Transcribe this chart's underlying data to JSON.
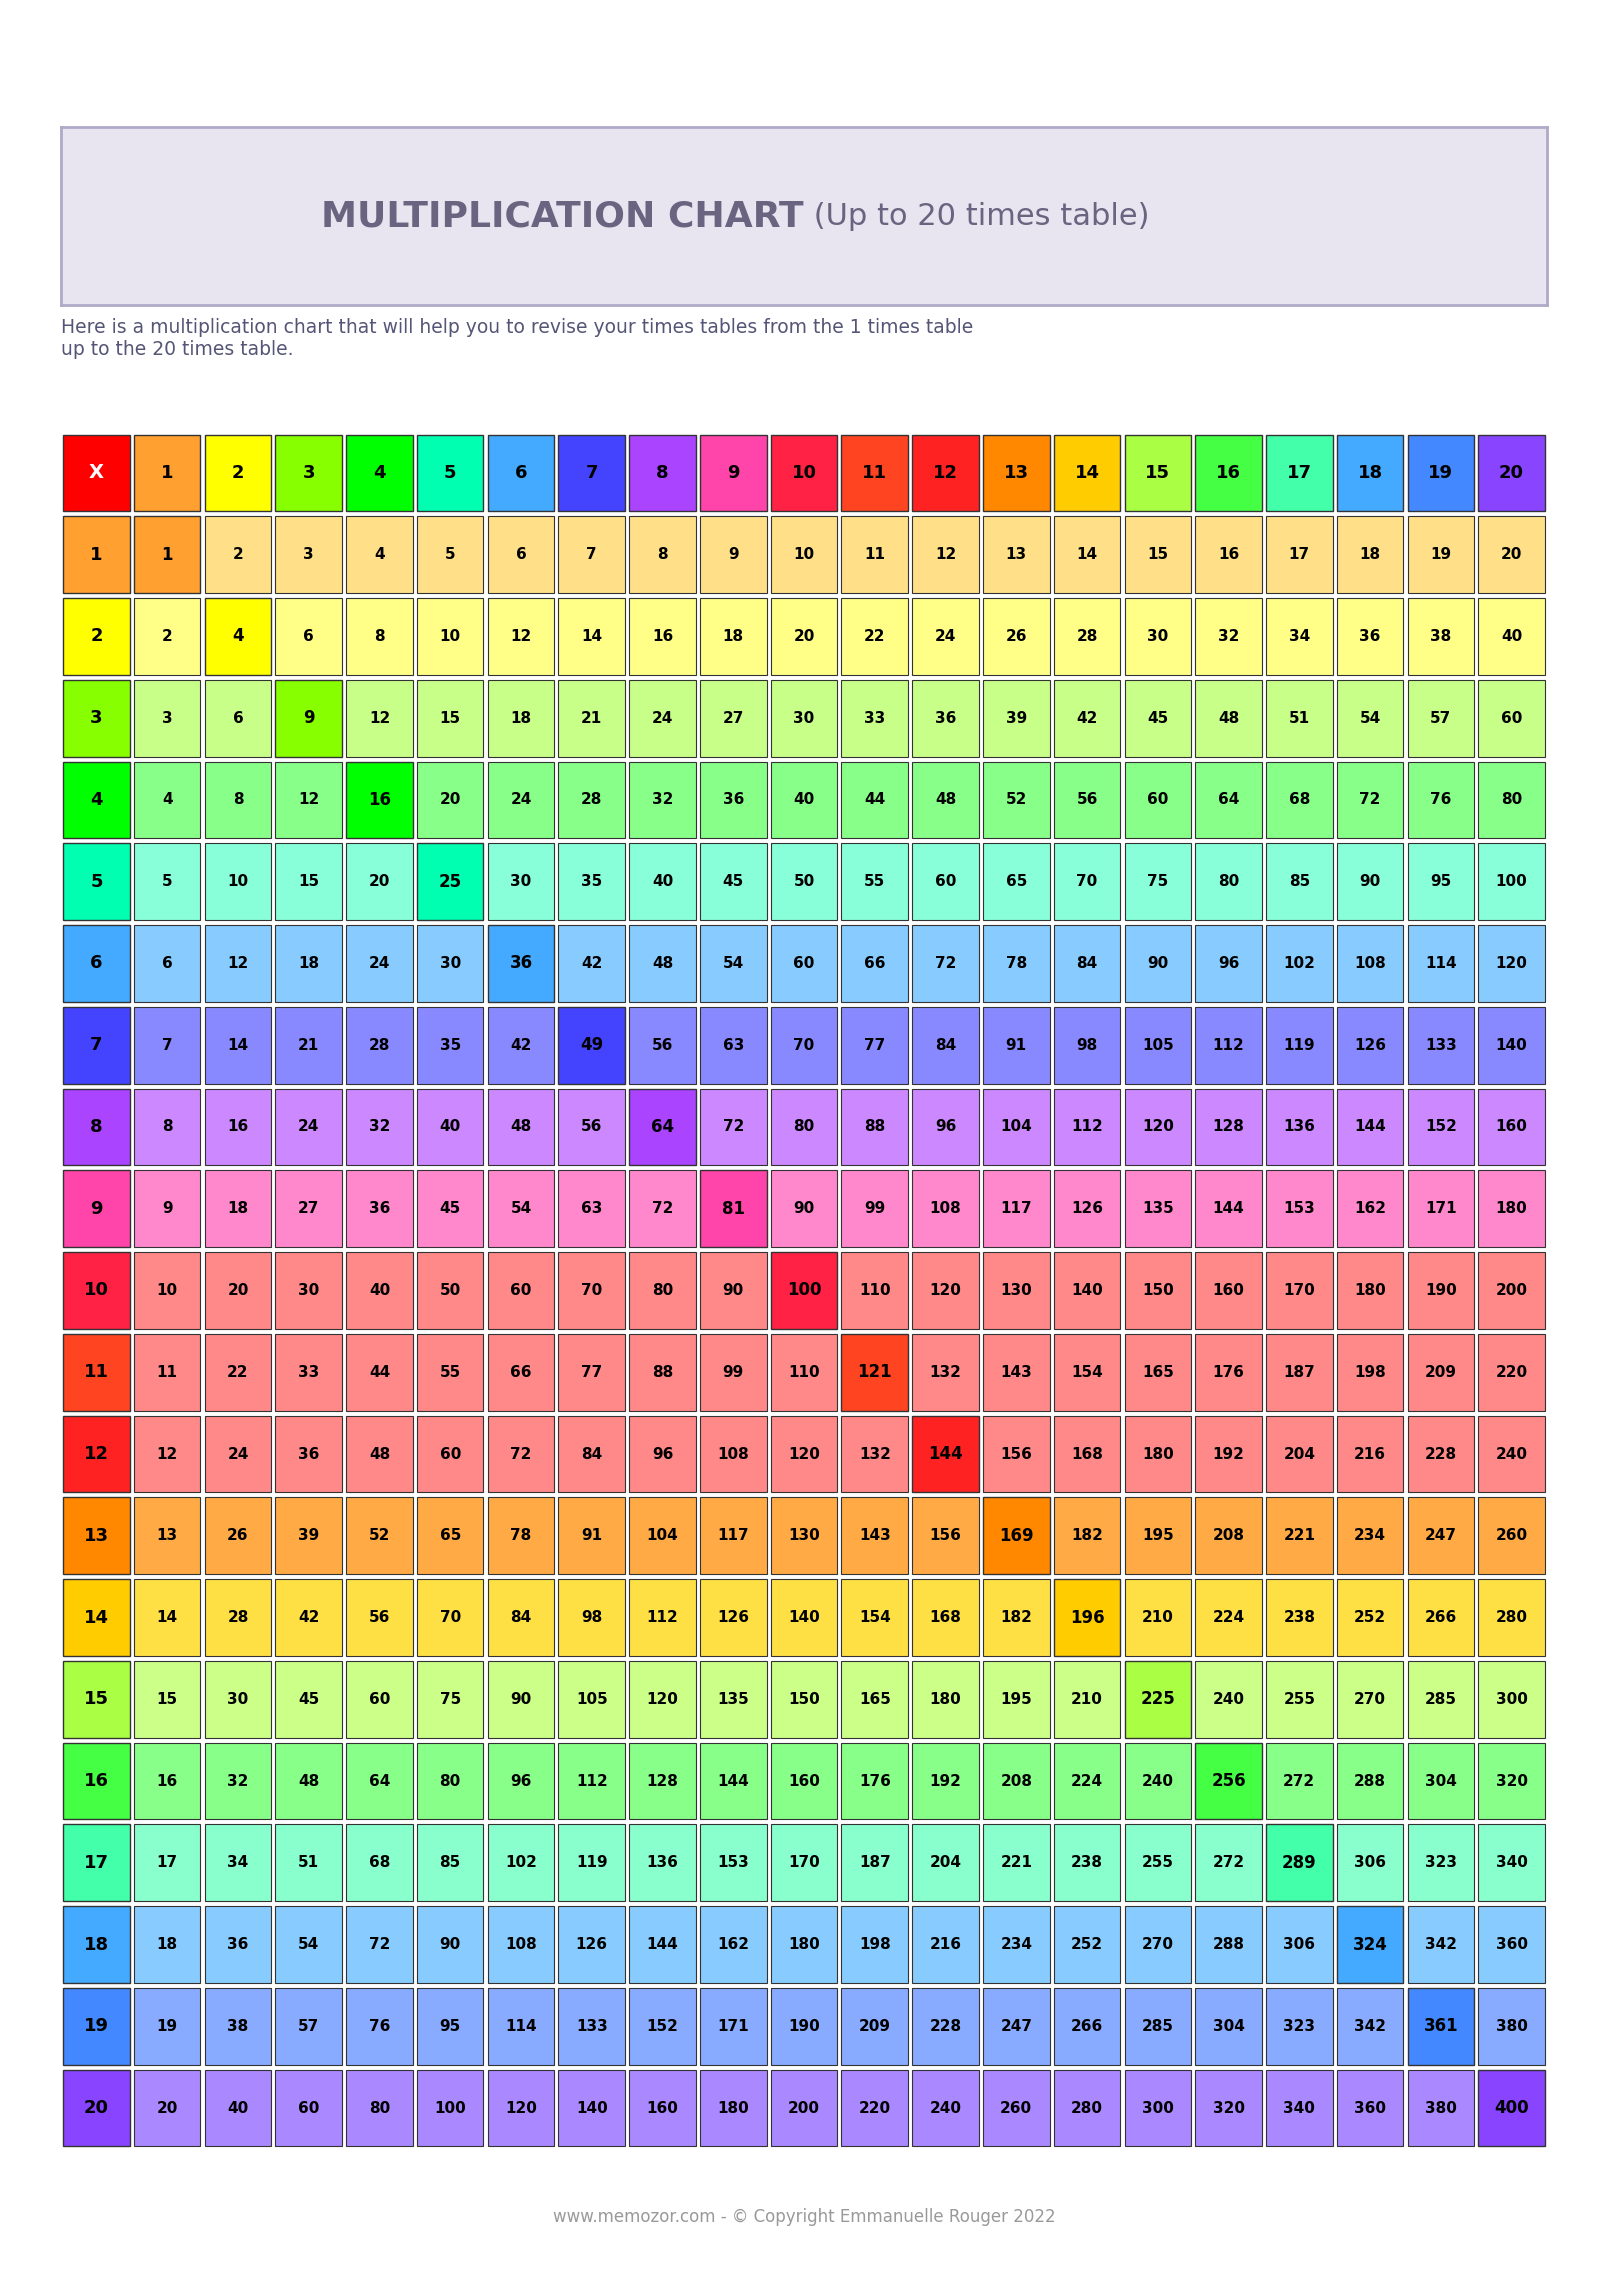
{
  "title_bold": "MULTIPLICATION CHART",
  "title_light": " (Up to 20 times table)",
  "subtitle": "Here is a multiplication chart that will help you to revise your times tables from the 1 times table\nup to the 20 times table.",
  "footer": "www.memozor.com - © Copyright Emmanuelle Rouger 2022",
  "bg_color": "#ffffff",
  "title_box_color": "#e8e5f0",
  "title_box_border": "#b0aac8",
  "title_text_color": "#6b6480",
  "subtitle_color": "#555577",
  "footer_color": "#999999",
  "x_cell_color": "#ff0000",
  "col_header_colors": [
    "#FFD580",
    "#FFFF80",
    "#C8F0A0",
    "#80FF80",
    "#80FFD0",
    "#80E8FF",
    "#80AAFF",
    "#AA80FF",
    "#E080FF",
    "#FF80E0",
    "#FF8080",
    "#FF8080",
    "#FFA040",
    "#FFD040",
    "#C8FF80",
    "#80FF80",
    "#80FFC0",
    "#80E0FF",
    "#80C0FF",
    "#C0A0FF"
  ],
  "row_header_colors": [
    "#FFA040",
    "#FFFF40",
    "#C8FF80",
    "#80FF80",
    "#40FFD0",
    "#80D0FF",
    "#8080FF",
    "#C060FF",
    "#FF60C0",
    "#FF4060",
    "#FF8040",
    "#FF4040",
    "#FFA040",
    "#FFD040",
    "#C0FF80",
    "#80FF80",
    "#40FFC0",
    "#40C0FF",
    "#40A0FF",
    "#8060FF"
  ],
  "row_bg_colors": [
    "#FFD580",
    "#FFFF80",
    "#C8F0A0",
    "#80FF80",
    "#80FFD0",
    "#80E8FF",
    "#80AAFF",
    "#AA80FF",
    "#E080FF",
    "#FF80E0",
    "#FF8080",
    "#FF8080",
    "#FFA040",
    "#FFD040",
    "#C8FF80",
    "#80FF80",
    "#80FFC0",
    "#80E0FF",
    "#80C0FF",
    "#C0A0FF"
  ]
}
